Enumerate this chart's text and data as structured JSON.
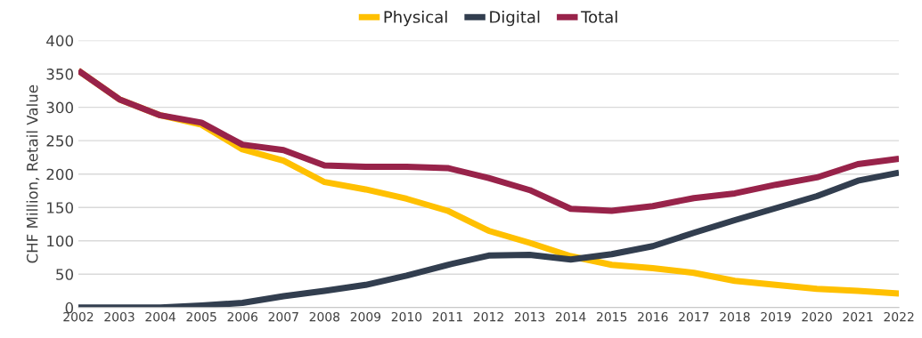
{
  "chart_data": {
    "type": "line",
    "ylabel": "CHF Million, Retail Value",
    "categories": [
      "2002",
      "2003",
      "2004",
      "2005",
      "2006",
      "2007",
      "2008",
      "2009",
      "2010",
      "2011",
      "2012",
      "2013",
      "2014",
      "2015",
      "2016",
      "2017",
      "2018",
      "2019",
      "2020",
      "2021",
      "2022"
    ],
    "series": [
      {
        "name": "Physical",
        "color": "#ffc000",
        "values": [
          355,
          312,
          288,
          274,
          237,
          220,
          188,
          177,
          163,
          145,
          115,
          97,
          77,
          64,
          59,
          52,
          40,
          34,
          28,
          25,
          21
        ]
      },
      {
        "name": "Digital",
        "color": "#323e4f",
        "values": [
          0,
          0,
          0,
          3,
          7,
          17,
          25,
          34,
          48,
          64,
          78,
          79,
          72,
          80,
          92,
          112,
          131,
          149,
          167,
          190,
          202
        ]
      },
      {
        "name": "Total",
        "color": "#98234a",
        "values": [
          355,
          312,
          288,
          277,
          244,
          236,
          213,
          211,
          211,
          209,
          194,
          176,
          148,
          145,
          152,
          164,
          171,
          184,
          195,
          215,
          223
        ]
      }
    ],
    "ylim": [
      0,
      400
    ],
    "yticks": [
      0,
      50,
      100,
      150,
      200,
      250,
      300,
      350,
      400
    ],
    "grid": "y",
    "legend": "top",
    "marker": "none",
    "line_style": "solid"
  }
}
